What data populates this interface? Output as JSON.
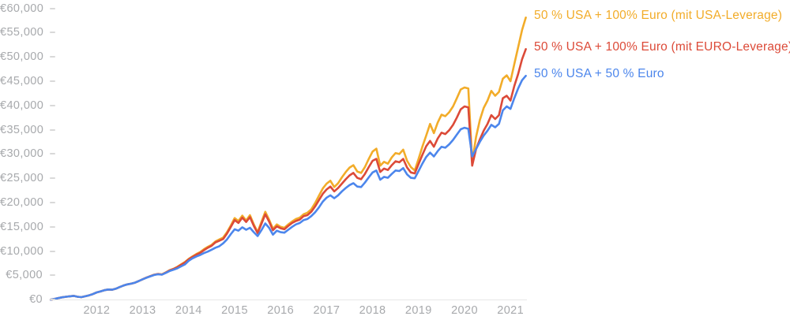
{
  "chart_data": {
    "type": "line",
    "title": "",
    "xlabel": "",
    "ylabel": "",
    "grid": false,
    "legend_position": "right-of-line-ends",
    "start_year": 2011,
    "points_per_year": 12,
    "xlim": [
      2011,
      2021.42
    ],
    "ylim": [
      0,
      60000
    ],
    "x_axis": {
      "labels": [
        "2012",
        "2013",
        "2014",
        "2015",
        "2016",
        "2017",
        "2018",
        "2019",
        "2020",
        "2021"
      ]
    },
    "y_axis": {
      "ticks": [
        {
          "value": 0,
          "label": "€0"
        },
        {
          "value": 5000,
          "label": "€5,000"
        },
        {
          "value": 10000,
          "label": "€10,000"
        },
        {
          "value": 15000,
          "label": "€15,000"
        },
        {
          "value": 20000,
          "label": "€20,000"
        },
        {
          "value": 25000,
          "label": "€25,000"
        },
        {
          "value": 30000,
          "label": "€30,000"
        },
        {
          "value": 35000,
          "label": "€35,000"
        },
        {
          "value": 40000,
          "label": "€40,000"
        },
        {
          "value": 45000,
          "label": "€45,000"
        },
        {
          "value": 50000,
          "label": "€50,000"
        },
        {
          "value": 55000,
          "label": "€55,000"
        },
        {
          "value": 60000,
          "label": "€60,000"
        }
      ]
    },
    "series": [
      {
        "id": "usa-leverage",
        "name": "50 % USA + 100% Euro (mit USA-Leverage)",
        "color": "#F2AC29",
        "values": [
          0,
          150,
          320,
          480,
          600,
          700,
          780,
          600,
          520,
          700,
          900,
          1150,
          1500,
          1700,
          1950,
          2100,
          2050,
          2250,
          2600,
          2900,
          3150,
          3300,
          3500,
          3850,
          4200,
          4550,
          4850,
          5150,
          5300,
          5200,
          5600,
          6050,
          6350,
          6750,
          7250,
          7750,
          8400,
          8900,
          9400,
          9800,
          10400,
          10900,
          11300,
          12000,
          12400,
          12800,
          13900,
          15300,
          16800,
          16200,
          17300,
          16300,
          17400,
          15500,
          13900,
          16000,
          18100,
          16500,
          14600,
          15500,
          15000,
          14800,
          15500,
          16100,
          16600,
          16900,
          17600,
          17900,
          18600,
          19900,
          21400,
          22900,
          23900,
          24500,
          23200,
          24000,
          25200,
          26300,
          27200,
          27700,
          26400,
          26100,
          27300,
          29000,
          30500,
          31100,
          27600,
          28400,
          28000,
          29300,
          30200,
          30000,
          30900,
          28600,
          27300,
          26600,
          29000,
          31500,
          33800,
          36200,
          34300,
          36500,
          38100,
          37800,
          38600,
          39800,
          41500,
          43300,
          43700,
          43500,
          28400,
          33500,
          37000,
          39500,
          41000,
          43000,
          42000,
          42800,
          45500,
          46200,
          45000,
          48500,
          52000,
          55500,
          58100
        ]
      },
      {
        "id": "euro-leverage",
        "name": "50 % USA + 100% Euro (mit EURO-Leverage)",
        "color": "#DC4A38",
        "values": [
          0,
          150,
          320,
          480,
          600,
          700,
          780,
          600,
          520,
          700,
          900,
          1150,
          1500,
          1700,
          1950,
          2100,
          2050,
          2250,
          2600,
          2900,
          3150,
          3300,
          3500,
          3850,
          4200,
          4540,
          4830,
          5130,
          5280,
          5180,
          5570,
          6010,
          6300,
          6680,
          7160,
          7640,
          8300,
          8800,
          9250,
          9650,
          10200,
          10700,
          11100,
          11800,
          12150,
          12500,
          13600,
          15000,
          16400,
          15800,
          16900,
          16000,
          17000,
          15200,
          13700,
          15600,
          17600,
          16100,
          14300,
          15100,
          14700,
          14500,
          15200,
          15800,
          16200,
          16500,
          17200,
          17400,
          18100,
          19200,
          20500,
          21800,
          22700,
          23300,
          22300,
          23000,
          23900,
          24800,
          25600,
          26100,
          25100,
          24800,
          25900,
          27300,
          28600,
          29000,
          26300,
          27000,
          26700,
          27700,
          28500,
          28300,
          29000,
          27200,
          26200,
          26000,
          27900,
          29800,
          31600,
          32700,
          31500,
          33200,
          34400,
          34100,
          34900,
          36000,
          37500,
          39200,
          39800,
          39600,
          27600,
          31000,
          33000,
          34800,
          36200,
          38000,
          37200,
          38000,
          41500,
          42000,
          41000,
          44000,
          46500,
          49500,
          51600
        ]
      },
      {
        "id": "50-50",
        "name": "50 % USA + 50 % Euro",
        "color": "#4C86EC",
        "values": [
          0,
          150,
          320,
          480,
          600,
          700,
          780,
          600,
          520,
          700,
          900,
          1150,
          1500,
          1700,
          1950,
          2100,
          2050,
          2250,
          2600,
          2900,
          3150,
          3300,
          3500,
          3850,
          4200,
          4520,
          4800,
          5080,
          5230,
          5150,
          5500,
          5900,
          6150,
          6450,
          6850,
          7250,
          8000,
          8500,
          8900,
          9200,
          9600,
          9900,
          10300,
          10700,
          11000,
          11600,
          12400,
          13500,
          14500,
          14200,
          14900,
          14400,
          14800,
          13900,
          13100,
          14300,
          15700,
          14800,
          13400,
          14200,
          13900,
          13800,
          14400,
          15000,
          15500,
          15800,
          16400,
          16600,
          17200,
          18000,
          19000,
          20200,
          21000,
          21500,
          20900,
          21500,
          22300,
          23000,
          23600,
          24000,
          23300,
          23200,
          24100,
          25200,
          26200,
          26600,
          24700,
          25300,
          25100,
          25900,
          26600,
          26500,
          27100,
          25800,
          25100,
          25000,
          26500,
          28000,
          29400,
          30300,
          29500,
          30600,
          31500,
          31300,
          32000,
          32900,
          34000,
          35100,
          35400,
          35200,
          29500,
          31000,
          32500,
          33800,
          34800,
          36000,
          35500,
          36200,
          39000,
          39800,
          39300,
          41500,
          43500,
          45200,
          46100
        ]
      }
    ]
  }
}
